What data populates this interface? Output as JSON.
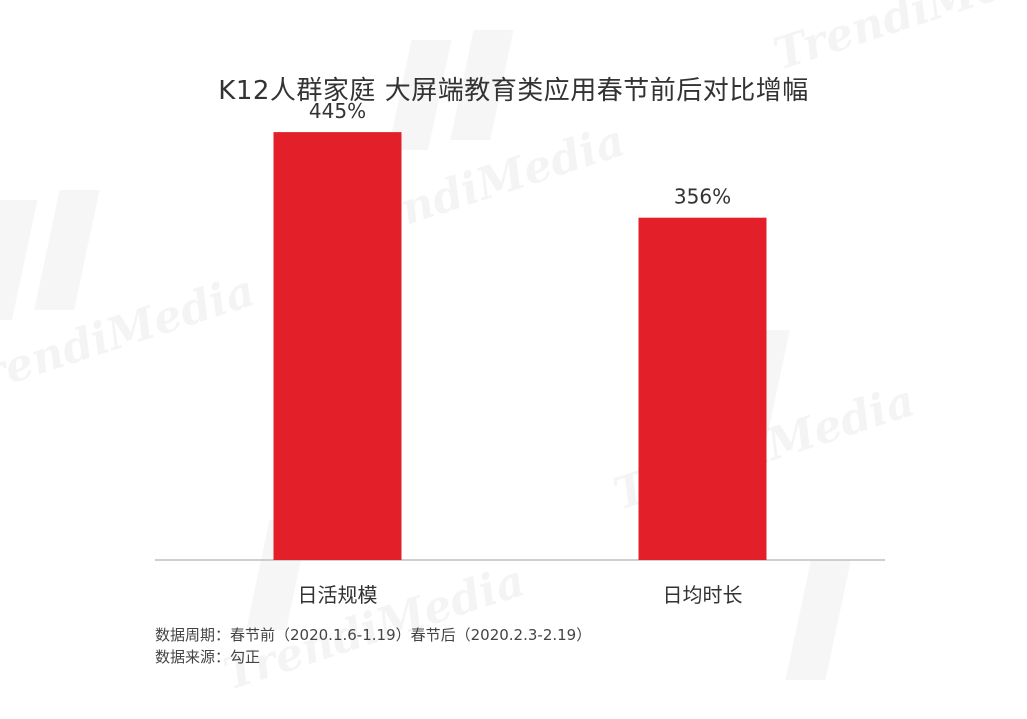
{
  "title": "K12人群家庭 大屏端教育类应用春节前后对比增幅",
  "watermark_text": "TrendiMedia",
  "colors": {
    "bar": "#e3202a",
    "baseline": "#bfbfbf",
    "text": "#333333"
  },
  "chart_data": {
    "type": "bar",
    "title": "K12人群家庭 大屏端教育类应用春节前后对比增幅",
    "categories": [
      "日活规模",
      "日均时长"
    ],
    "values": [
      445,
      356
    ],
    "value_labels": [
      "445%",
      "356%"
    ],
    "unit": "%",
    "xlabel": "",
    "ylabel": "",
    "ylim": [
      0,
      520
    ],
    "grid": false,
    "legend": "none"
  },
  "footnotes": {
    "period": "数据周期：春节前（2020.1.6-1.19）春节后（2020.2.3-2.19）",
    "source": "数据来源：勾正"
  }
}
